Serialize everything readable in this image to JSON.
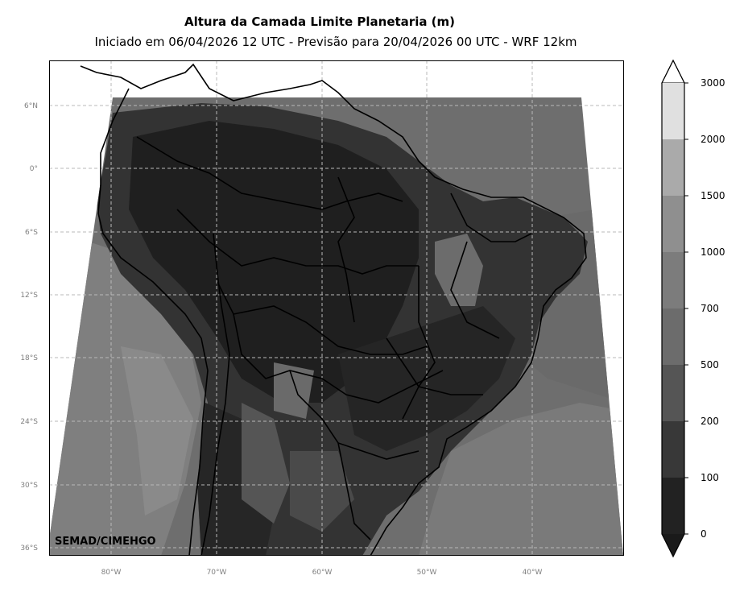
{
  "title": "Altura da Camada Limite Planetaria (m)",
  "subtitle": "Iniciado em 06/04/2026 12 UTC - Previsão para 20/04/2026 00 UTC - WRF 12km",
  "credit": "SEMAD/CIMEHGO",
  "lat_labels": [
    "6°N",
    "0°",
    "6°S",
    "12°S",
    "18°S",
    "24°S",
    "30°S",
    "36°S"
  ],
  "lon_labels": [
    "80°W",
    "70°W",
    "60°W",
    "50°W",
    "40°W"
  ],
  "colorbar": {
    "ticks": [
      "3000",
      "2000",
      "1500",
      "1000",
      "700",
      "500",
      "200",
      "100",
      "0"
    ],
    "colors": [
      "#ffffff",
      "#e0e0e0",
      "#aaaaaa",
      "#8f8f8f",
      "#7c7c7c",
      "#6c6c6c",
      "#555555",
      "#383838",
      "#222222",
      "#1a1a1a"
    ]
  },
  "map_colors": {
    "deep": "#1e1e1e",
    "dark": "#333333",
    "mid": "#555555",
    "medium": "#6f6f6f",
    "light": "#7f7f7f",
    "grid": "#b8b8b8"
  }
}
